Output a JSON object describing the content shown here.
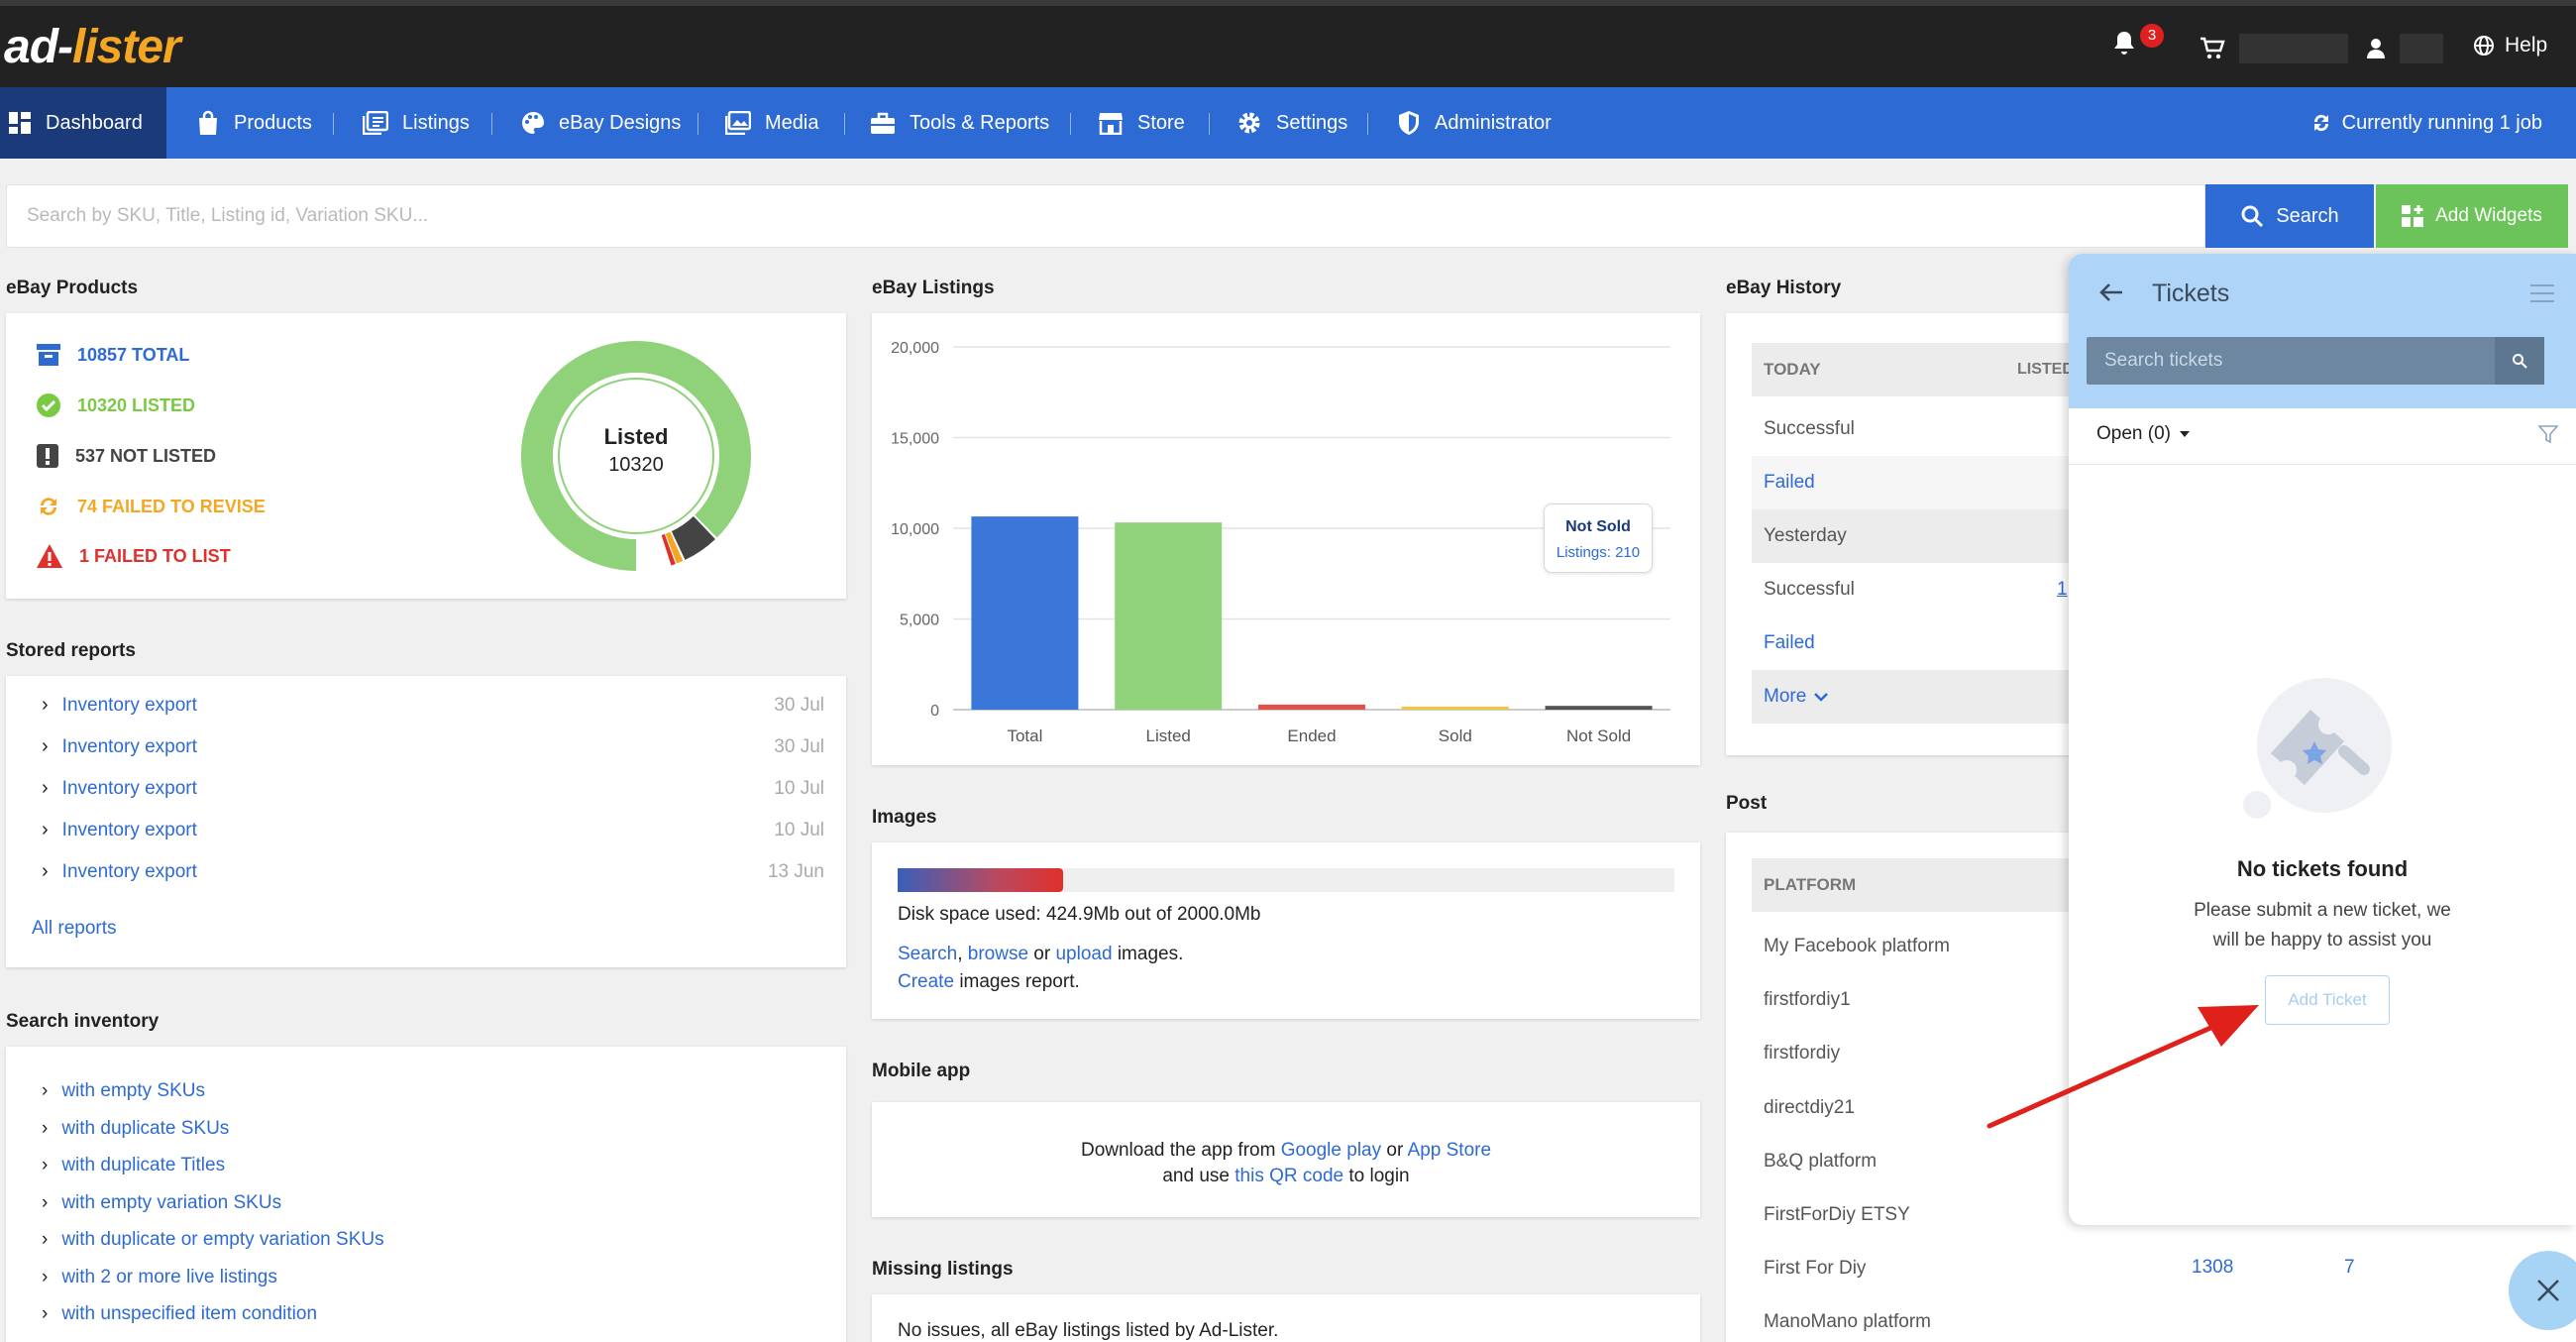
{
  "app": {
    "logo_part1": "ad-",
    "logo_part2": "lister",
    "notifications_count": "3",
    "help": "Help"
  },
  "nav": {
    "items": [
      {
        "label": "Dashboard"
      },
      {
        "label": "Products"
      },
      {
        "label": "Listings"
      },
      {
        "label": "eBay Designs"
      },
      {
        "label": "Media"
      },
      {
        "label": "Tools & Reports"
      },
      {
        "label": "Store"
      },
      {
        "label": "Settings"
      },
      {
        "label": "Administrator"
      }
    ],
    "status": "Currently running 1 job"
  },
  "search": {
    "placeholder": "Search by SKU, Title, Listing id, Variation SKU...",
    "button": "Search",
    "add_widgets": "Add Widgets"
  },
  "ebay_products": {
    "title": "eBay Products",
    "total": "10857 TOTAL",
    "listed": "10320 LISTED",
    "not_listed": "537 NOT LISTED",
    "failed_revise": "74 FAILED TO REVISE",
    "failed_list": "1 FAILED TO LIST",
    "donut_label": "Listed",
    "donut_value": "10320",
    "colors": {
      "total": "#2d6ad4",
      "listed": "#7ac943",
      "not_listed": "#444444",
      "failed_revise": "#f5a623",
      "failed_list": "#e0302b"
    }
  },
  "stored_reports": {
    "title": "Stored reports",
    "items": [
      {
        "label": "Inventory export",
        "date": "30 Jul"
      },
      {
        "label": "Inventory export",
        "date": "30 Jul"
      },
      {
        "label": "Inventory export",
        "date": "10 Jul"
      },
      {
        "label": "Inventory export",
        "date": "10 Jul"
      },
      {
        "label": "Inventory export",
        "date": "13 Jun"
      }
    ],
    "all_reports": "All reports"
  },
  "search_inventory": {
    "title": "Search inventory",
    "items": [
      "with empty SKUs",
      "with duplicate SKUs",
      "with duplicate Titles",
      "with empty variation SKUs",
      "with duplicate or empty variation SKUs",
      "with 2 or more live listings",
      "with unspecified item condition"
    ]
  },
  "ebay_listings": {
    "title": "eBay Listings",
    "tooltip_title": "Not Sold",
    "tooltip_value": "Listings: 210"
  },
  "chart_data": {
    "type": "bar",
    "categories": [
      "Total",
      "Listed",
      "Ended",
      "Sold",
      "Not Sold"
    ],
    "values": [
      10650,
      10320,
      280,
      60,
      210
    ],
    "colors": [
      "#3a77d8",
      "#8fd27a",
      "#e0524a",
      "#f5c242",
      "#555555"
    ],
    "ylim": [
      0,
      20000
    ],
    "yticks": [
      "0",
      "5,000",
      "10,000",
      "15,000",
      "20,000"
    ],
    "grid": true
  },
  "images": {
    "title": "Images",
    "usage_fraction": 0.2125,
    "disk_text": "Disk space used: 424.9Mb out of 2000.0Mb",
    "search": "Search",
    "comma": ",",
    "browse": "browse",
    "or": "or",
    "upload": "upload",
    "images_text": "images.",
    "create": "Create",
    "report_text": "images report."
  },
  "mobile_app": {
    "title": "Mobile app",
    "line1_prefix": "Download the app from",
    "google_play": "Google play",
    "or": "or",
    "app_store": "App Store",
    "line2_prefix": "and use",
    "qr": "this QR code",
    "line2_suffix": "to login"
  },
  "missing_listings": {
    "title": "Missing listings",
    "text": "No issues, all eBay listings listed by Ad-Lister."
  },
  "ebay_history": {
    "title": "eBay History",
    "col_today": "TODAY",
    "col_listed": "LISTED",
    "rows": [
      "Successful",
      "Failed",
      "Yesterday",
      "Successful",
      "Failed"
    ],
    "more": "More",
    "partial_link": "1"
  },
  "post": {
    "title": "Post",
    "col_platform": "PLATFORM",
    "platforms": [
      "My Facebook platform",
      "firstfordiy1",
      "firstfordiy",
      "directdiy21",
      "B&Q platform",
      "FirstForDiy ETSY",
      "First For Diy",
      "ManoMano platform"
    ],
    "first_for_diy_a": "1308",
    "first_for_diy_b": "7"
  },
  "tickets": {
    "title": "Tickets",
    "search_placeholder": "Search tickets",
    "filter": "Open (0)",
    "empty_title": "No tickets found",
    "empty_line1": "Please submit a new ticket, we",
    "empty_line2": "will be happy to assist you",
    "add_ticket": "Add Ticket"
  }
}
